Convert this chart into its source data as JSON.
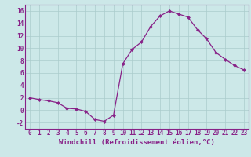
{
  "x": [
    0,
    1,
    2,
    3,
    4,
    5,
    6,
    7,
    8,
    9,
    10,
    11,
    12,
    13,
    14,
    15,
    16,
    17,
    18,
    19,
    20,
    21,
    22,
    23
  ],
  "y": [
    2.0,
    1.7,
    1.5,
    1.2,
    0.3,
    0.2,
    -0.2,
    -1.5,
    -1.8,
    -0.8,
    7.5,
    9.8,
    11.0,
    13.5,
    15.2,
    16.0,
    15.5,
    15.0,
    13.0,
    11.5,
    9.3,
    8.2,
    7.2,
    6.5
  ],
  "line_color": "#882288",
  "marker": "D",
  "marker_size": 2.0,
  "bg_color": "#cce8e8",
  "grid_color": "#aacccc",
  "xlabel": "Windchill (Refroidissement éolien,°C)",
  "xlabel_fontsize": 6.5,
  "tick_fontsize": 5.5,
  "ylim": [
    -3,
    17
  ],
  "yticks": [
    -2,
    0,
    2,
    4,
    6,
    8,
    10,
    12,
    14,
    16
  ],
  "xlim": [
    -0.5,
    23.5
  ]
}
